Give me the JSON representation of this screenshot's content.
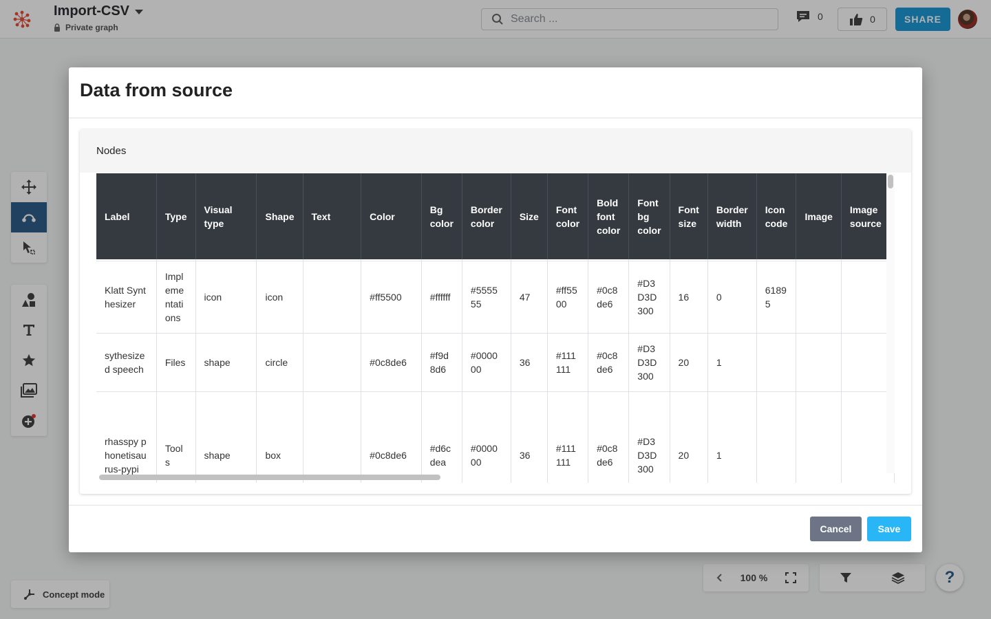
{
  "header": {
    "title": "Import-CSV",
    "privacy": "Private graph",
    "search_placeholder": "Search ...",
    "comments_count": "0",
    "likes_count": "0",
    "share_label": "SHARE"
  },
  "sidebar": {
    "concept_mode_label": "Concept mode"
  },
  "bottom": {
    "zoom_level": "100 %"
  },
  "help": {
    "label": "?"
  },
  "modal": {
    "title": "Data from source",
    "section_title": "Nodes",
    "columns": [
      "Label",
      "Type",
      "Visual type",
      "Shape",
      "Text",
      "Color",
      "Bg color",
      "Border color",
      "Size",
      "Font color",
      "Bold font color",
      "Font bg color",
      "Font size",
      "Border width",
      "Icon code",
      "Image",
      "Image source"
    ],
    "rows": [
      [
        "Klatt Synthesizer",
        "Implementations",
        "icon",
        "icon",
        "",
        "#ff5500",
        "#ffffff",
        "#555555",
        "47",
        "#ff5500",
        "#0c8de6",
        "#D3D3D300",
        "16",
        "0",
        "61895",
        "",
        ""
      ],
      [
        "sythesized speech",
        "Files",
        "shape",
        "circle",
        "",
        "#0c8de6",
        "#f9d8d6",
        "#000000",
        "36",
        "#111111",
        "#0c8de6",
        "#D3D3D300",
        "20",
        "1",
        "",
        "",
        ""
      ],
      [
        "rhasspy phonetisaurus-pypi",
        "Tools",
        "shape",
        "box",
        "",
        "#0c8de6",
        "#d6cdea",
        "#000000",
        "36",
        "#111111",
        "#0c8de6",
        "#D3D3D300",
        "20",
        "1",
        "",
        "",
        ""
      ]
    ],
    "cancel_label": "Cancel",
    "save_label": "Save"
  },
  "colors": {
    "accent": "#1e9ad6",
    "active_tool": "#2e5d88",
    "table_header": "#343a40",
    "save": "#29b6f6",
    "cancel": "#6c7486"
  }
}
